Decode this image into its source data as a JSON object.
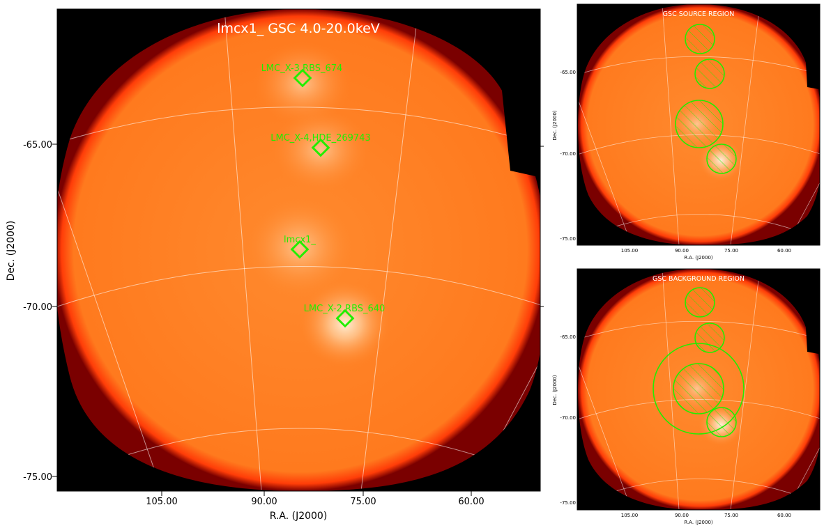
{
  "main": {
    "title": "lmcx1_ GSC 4.0-20.0keV",
    "xlabel": "R.A. (J2000)",
    "ylabel": "Dec. (J2000)",
    "xticks": [
      "105.00",
      "90.00",
      "75.00",
      "60.00"
    ],
    "yticks": [
      "-65.00",
      "-70.00",
      "-75.00"
    ],
    "sources": [
      {
        "label": "LMC_X-3,RBS_674"
      },
      {
        "label": "LMC_X-4,HDE_269743"
      },
      {
        "label": "lmcx1_"
      },
      {
        "label": "LMC_X-2,RBS_640"
      }
    ]
  },
  "source_panel": {
    "title": "GSC SOURCE REGION",
    "xlabel": "R.A. (J2000)",
    "ylabel": "Dec. (J2000)",
    "xticks": [
      "105.00",
      "90.00",
      "75.00",
      "60.00"
    ],
    "yticks": [
      "-65.00",
      "-70.00",
      "-75.00"
    ]
  },
  "background_panel": {
    "title": "GSC BACKGROUND REGION",
    "xlabel": "R.A. (J2000)",
    "ylabel": "Dec. (J2000)",
    "xticks": [
      "105.00",
      "90.00",
      "75.00",
      "60.00"
    ],
    "yticks": [
      "-65.00",
      "-70.00",
      "-75.00"
    ]
  },
  "colors": {
    "marker": "#22ee00",
    "background": "#000000",
    "image_orange": "#ff7a20",
    "hot": "#fff2d8"
  }
}
